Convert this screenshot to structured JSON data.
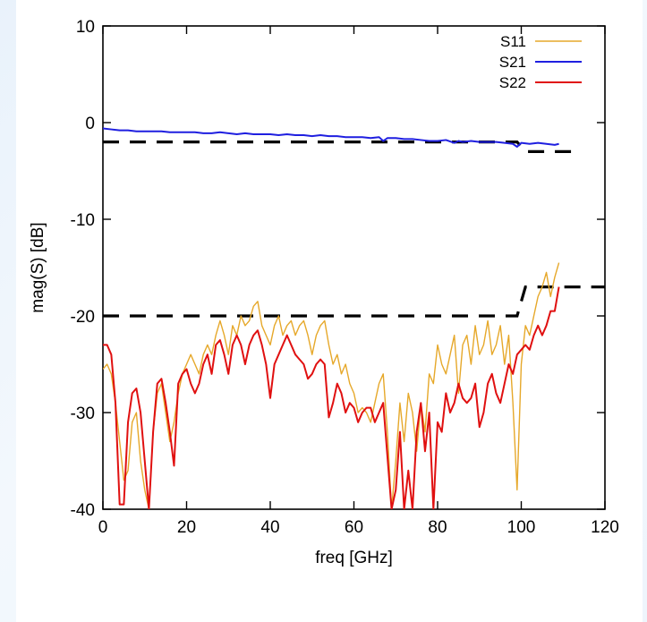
{
  "chart_data": {
    "type": "line",
    "title": "",
    "xlabel": "freq [GHz]",
    "ylabel": "mag(S) [dB]",
    "xlim": [
      0,
      120
    ],
    "ylim": [
      -40,
      10
    ],
    "xticks": [
      0,
      20,
      40,
      60,
      80,
      100,
      120
    ],
    "yticks": [
      10,
      0,
      -10,
      -20,
      -30,
      -40
    ],
    "grid": false,
    "legend_position": "top-right",
    "series": [
      {
        "name": "S11",
        "color": "#e6a82a",
        "x": [
          0,
          1,
          2,
          3,
          4,
          5,
          6,
          7,
          8,
          9,
          10,
          11,
          12,
          13,
          14,
          15,
          16,
          17,
          18,
          19,
          20,
          21,
          22,
          23,
          24,
          25,
          26,
          27,
          28,
          29,
          30,
          31,
          32,
          33,
          34,
          35,
          36,
          37,
          38,
          39,
          40,
          41,
          42,
          43,
          44,
          45,
          46,
          47,
          48,
          49,
          50,
          51,
          52,
          53,
          54,
          55,
          56,
          57,
          58,
          59,
          60,
          61,
          62,
          63,
          64,
          65,
          66,
          67,
          68,
          69,
          70,
          71,
          72,
          73,
          74,
          75,
          76,
          77,
          78,
          79,
          80,
          81,
          82,
          83,
          84,
          85,
          86,
          87,
          88,
          89,
          90,
          91,
          92,
          93,
          94,
          95,
          96,
          97,
          98,
          99,
          100,
          101,
          102,
          103,
          104,
          105,
          106,
          107,
          108,
          109
        ],
        "values": [
          -25.5,
          -25,
          -26,
          -29,
          -33,
          -37,
          -36,
          -31,
          -30,
          -35,
          -38,
          -40,
          -32,
          -28,
          -27,
          -30,
          -33,
          -31,
          -28,
          -26,
          -25,
          -24,
          -25,
          -26,
          -24,
          -23,
          -24,
          -22,
          -20.5,
          -22,
          -24,
          -21,
          -22,
          -20,
          -21,
          -20.5,
          -19,
          -18.5,
          -21,
          -22,
          -23,
          -21,
          -20,
          -22,
          -21,
          -20.5,
          -22,
          -21,
          -20.5,
          -22,
          -24,
          -22,
          -21,
          -20.5,
          -23,
          -25,
          -24,
          -26,
          -25,
          -27,
          -28,
          -30,
          -29.5,
          -30,
          -31,
          -29,
          -27,
          -26,
          -32,
          -40,
          -35,
          -29,
          -33,
          -28,
          -30,
          -34,
          -29,
          -32,
          -26,
          -27,
          -23,
          -25,
          -26,
          -24,
          -22,
          -28,
          -23,
          -22,
          -25,
          -21,
          -24,
          -23,
          -20.5,
          -24,
          -23,
          -21,
          -25,
          -22,
          -29,
          -38,
          -25,
          -21,
          -22,
          -20,
          -18,
          -17,
          -15.5,
          -18,
          -16,
          -14.5
        ]
      },
      {
        "name": "S21",
        "color": "#1f1fe0",
        "x": [
          0,
          2,
          4,
          6,
          8,
          10,
          12,
          14,
          16,
          18,
          20,
          22,
          24,
          26,
          28,
          30,
          32,
          34,
          36,
          38,
          40,
          42,
          44,
          46,
          48,
          50,
          52,
          54,
          56,
          58,
          60,
          62,
          64,
          66,
          67,
          68,
          70,
          72,
          74,
          76,
          78,
          80,
          82,
          84,
          85,
          86,
          88,
          90,
          92,
          94,
          96,
          98,
          99,
          100,
          102,
          104,
          106,
          108,
          109
        ],
        "values": [
          -0.6,
          -0.7,
          -0.8,
          -0.8,
          -0.9,
          -0.9,
          -0.9,
          -0.9,
          -1.0,
          -1.0,
          -1.0,
          -1.0,
          -1.1,
          -1.1,
          -1.0,
          -1.1,
          -1.2,
          -1.1,
          -1.2,
          -1.2,
          -1.2,
          -1.3,
          -1.2,
          -1.3,
          -1.3,
          -1.4,
          -1.3,
          -1.4,
          -1.4,
          -1.5,
          -1.5,
          -1.5,
          -1.6,
          -1.5,
          -1.9,
          -1.6,
          -1.6,
          -1.7,
          -1.7,
          -1.8,
          -1.9,
          -1.9,
          -1.8,
          -2.1,
          -1.9,
          -2.0,
          -1.9,
          -2.0,
          -2.0,
          -2.0,
          -2.1,
          -2.2,
          -2.5,
          -2.1,
          -2.2,
          -2.1,
          -2.2,
          -2.3,
          -2.2
        ]
      },
      {
        "name": "S22",
        "color": "#e01010",
        "x": [
          0,
          1,
          2,
          3,
          4,
          5,
          6,
          7,
          8,
          9,
          10,
          11,
          12,
          13,
          14,
          15,
          16,
          17,
          18,
          19,
          20,
          21,
          22,
          23,
          24,
          25,
          26,
          27,
          28,
          29,
          30,
          31,
          32,
          33,
          34,
          35,
          36,
          37,
          38,
          39,
          40,
          41,
          42,
          43,
          44,
          45,
          46,
          47,
          48,
          49,
          50,
          51,
          52,
          53,
          54,
          55,
          56,
          57,
          58,
          59,
          60,
          61,
          62,
          63,
          64,
          65,
          66,
          67,
          68,
          69,
          70,
          71,
          72,
          73,
          74,
          75,
          76,
          77,
          78,
          79,
          80,
          81,
          82,
          83,
          84,
          85,
          86,
          87,
          88,
          89,
          90,
          91,
          92,
          93,
          94,
          95,
          96,
          97,
          98,
          99,
          100,
          101,
          102,
          103,
          104,
          105,
          106,
          107,
          108,
          109
        ],
        "values": [
          -23,
          -23,
          -24,
          -29,
          -39.5,
          -39.5,
          -31,
          -28,
          -27.5,
          -30,
          -35,
          -40,
          -32,
          -27,
          -26.5,
          -29,
          -32,
          -35.5,
          -27,
          -26,
          -25.5,
          -27,
          -28,
          -27,
          -25,
          -24,
          -26,
          -23,
          -22.5,
          -24,
          -26,
          -23,
          -22,
          -23,
          -25,
          -23,
          -22,
          -21.5,
          -23,
          -25,
          -28.5,
          -25,
          -24,
          -23,
          -22,
          -23,
          -24,
          -24.5,
          -25,
          -26.5,
          -26,
          -25,
          -24.5,
          -25,
          -30.5,
          -29,
          -27,
          -28,
          -30,
          -29,
          -29.5,
          -31,
          -30,
          -29.5,
          -29.5,
          -31,
          -30,
          -29,
          -34.5,
          -40,
          -38,
          -32,
          -40,
          -36,
          -40,
          -32,
          -29,
          -34,
          -30,
          -40,
          -31,
          -32,
          -28,
          -30,
          -29,
          -27,
          -28.5,
          -29,
          -28.5,
          -27,
          -31.5,
          -30,
          -27,
          -26,
          -28,
          -29,
          -27,
          -25,
          -26,
          -24,
          -23.5,
          -23,
          -23.5,
          -22,
          -21,
          -22,
          -21,
          -19.5,
          -19.5,
          -17
        ]
      }
    ],
    "reference_lines": [
      {
        "x": [
          0,
          99,
          101,
          112
        ],
        "values": [
          -2,
          -2,
          -3,
          -3
        ]
      },
      {
        "x": [
          0,
          99,
          101,
          120
        ],
        "values": [
          -20,
          -20,
          -17,
          -17
        ]
      }
    ]
  }
}
